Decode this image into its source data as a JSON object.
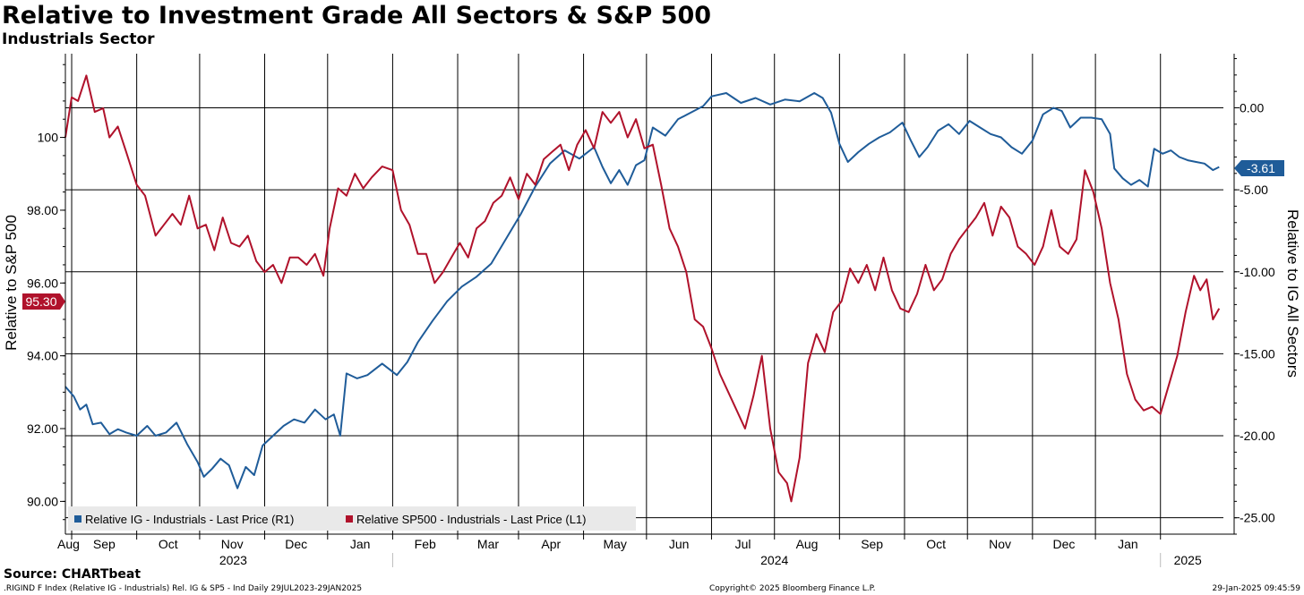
{
  "header": {
    "title": "Relative to Investment Grade All Sectors & S&P 500",
    "subtitle": "Industrials Sector"
  },
  "footer": {
    "source": "Source: CHARTbeat",
    "ticker_info": ".RIGIND F Index (Relative IG - Industrials) Rel. IG & SP5 - Ind  Daily 29JUL2023-29JAN2025",
    "copyright": "Copyright© 2025 Bloomberg Finance L.P.",
    "timestamp": "29-Jan-2025 09:45:59"
  },
  "chart_data": {
    "type": "line",
    "title": "Relative to Investment Grade All Sectors & S&P 500",
    "subtitle": "Industrials Sector",
    "x_months": [
      "Aug",
      "Sep",
      "Oct",
      "Nov",
      "Dec",
      "Jan",
      "Feb",
      "Mar",
      "Apr",
      "May",
      "Jun",
      "Jul",
      "Aug",
      "Sep",
      "Oct",
      "Nov",
      "Dec",
      "Jan"
    ],
    "x_years": [
      "2023",
      "2024",
      "2025"
    ],
    "left_axis": {
      "label": "Relative to S&P 500",
      "ticks": [
        "90.00",
        "92.00",
        "94.00",
        "96.00",
        "98.00",
        "100"
      ],
      "range": [
        89.1,
        102.3
      ]
    },
    "right_axis": {
      "label": "Relative to IG All Sectors",
      "ticks": [
        "0.00",
        "-5.00",
        "-10.00",
        "-15.00",
        "-20.00",
        "-25.00"
      ],
      "range": [
        -26.0,
        3.3
      ]
    },
    "legend_placement": "bottom-left",
    "grid": true,
    "colors": {
      "ig": "#1f5c99",
      "sp": "#b0122b"
    },
    "series": [
      {
        "name": "Relative IG - Industrials - Last Price (R1)",
        "axis": "right",
        "color": "#1f5c99",
        "last_value_label": "-3.61",
        "points": [
          [
            "2023-07-29",
            -17.0
          ],
          [
            "2023-08-02",
            -17.6
          ],
          [
            "2023-08-05",
            -18.4
          ],
          [
            "2023-08-08",
            -18.1
          ],
          [
            "2023-08-11",
            -19.3
          ],
          [
            "2023-08-15",
            -19.2
          ],
          [
            "2023-08-19",
            -19.9
          ],
          [
            "2023-08-23",
            -19.6
          ],
          [
            "2023-08-27",
            -19.8
          ],
          [
            "2023-09-01",
            -20.0
          ],
          [
            "2023-09-06",
            -19.4
          ],
          [
            "2023-09-10",
            -20.0
          ],
          [
            "2023-09-15",
            -19.8
          ],
          [
            "2023-09-20",
            -19.2
          ],
          [
            "2023-09-25",
            -20.5
          ],
          [
            "2023-09-30",
            -21.6
          ],
          [
            "2023-10-03",
            -22.5
          ],
          [
            "2023-10-07",
            -22.0
          ],
          [
            "2023-10-11",
            -21.4
          ],
          [
            "2023-10-15",
            -21.8
          ],
          [
            "2023-10-19",
            -23.2
          ],
          [
            "2023-10-23",
            -21.9
          ],
          [
            "2023-10-27",
            -22.4
          ],
          [
            "2023-10-31",
            -20.6
          ],
          [
            "2023-11-05",
            -20.0
          ],
          [
            "2023-11-10",
            -19.4
          ],
          [
            "2023-11-15",
            -19.0
          ],
          [
            "2023-11-20",
            -19.2
          ],
          [
            "2023-11-25",
            -18.4
          ],
          [
            "2023-11-30",
            -19.0
          ],
          [
            "2023-12-04",
            -18.7
          ],
          [
            "2023-12-07",
            -20.0
          ],
          [
            "2023-12-10",
            -16.2
          ],
          [
            "2023-12-15",
            -16.5
          ],
          [
            "2023-12-20",
            -16.3
          ],
          [
            "2023-12-27",
            -15.6
          ],
          [
            "2024-01-03",
            -16.3
          ],
          [
            "2024-01-08",
            -15.5
          ],
          [
            "2024-01-13",
            -14.3
          ],
          [
            "2024-01-20",
            -13.0
          ],
          [
            "2024-01-27",
            -11.8
          ],
          [
            "2024-02-03",
            -10.9
          ],
          [
            "2024-02-10",
            -10.3
          ],
          [
            "2024-02-17",
            -9.5
          ],
          [
            "2024-02-24",
            -8.0
          ],
          [
            "2024-03-02",
            -6.5
          ],
          [
            "2024-03-09",
            -4.8
          ],
          [
            "2024-03-16",
            -3.4
          ],
          [
            "2024-03-23",
            -2.6
          ],
          [
            "2024-03-30",
            -3.1
          ],
          [
            "2024-04-06",
            -2.4
          ],
          [
            "2024-04-10",
            -3.6
          ],
          [
            "2024-04-14",
            -4.6
          ],
          [
            "2024-04-18",
            -3.8
          ],
          [
            "2024-04-22",
            -4.7
          ],
          [
            "2024-04-26",
            -3.5
          ],
          [
            "2024-04-30",
            -3.2
          ],
          [
            "2024-05-04",
            -1.2
          ],
          [
            "2024-05-10",
            -1.7
          ],
          [
            "2024-05-16",
            -0.7
          ],
          [
            "2024-05-22",
            -0.3
          ],
          [
            "2024-05-28",
            0.1
          ],
          [
            "2024-06-01",
            0.7
          ],
          [
            "2024-06-08",
            0.9
          ],
          [
            "2024-06-15",
            0.3
          ],
          [
            "2024-06-22",
            0.6
          ],
          [
            "2024-06-29",
            0.2
          ],
          [
            "2024-07-06",
            0.5
          ],
          [
            "2024-07-13",
            0.4
          ],
          [
            "2024-07-20",
            0.9
          ],
          [
            "2024-07-24",
            0.6
          ],
          [
            "2024-07-28",
            -0.3
          ],
          [
            "2024-08-01",
            -2.2
          ],
          [
            "2024-08-05",
            -3.3
          ],
          [
            "2024-08-10",
            -2.7
          ],
          [
            "2024-08-15",
            -2.2
          ],
          [
            "2024-08-20",
            -1.8
          ],
          [
            "2024-08-25",
            -1.5
          ],
          [
            "2024-08-31",
            -0.9
          ],
          [
            "2024-09-04",
            -2.0
          ],
          [
            "2024-09-08",
            -3.0
          ],
          [
            "2024-09-12",
            -2.4
          ],
          [
            "2024-09-17",
            -1.4
          ],
          [
            "2024-09-22",
            -1.0
          ],
          [
            "2024-09-27",
            -1.6
          ],
          [
            "2024-10-02",
            -0.8
          ],
          [
            "2024-10-07",
            -1.2
          ],
          [
            "2024-10-12",
            -1.6
          ],
          [
            "2024-10-17",
            -1.8
          ],
          [
            "2024-10-22",
            -2.4
          ],
          [
            "2024-10-27",
            -2.8
          ],
          [
            "2024-11-01",
            -2.0
          ],
          [
            "2024-11-06",
            -0.4
          ],
          [
            "2024-11-11",
            0.0
          ],
          [
            "2024-11-15",
            -0.2
          ],
          [
            "2024-11-19",
            -1.2
          ],
          [
            "2024-11-24",
            -0.6
          ],
          [
            "2024-11-29",
            -0.6
          ],
          [
            "2024-12-04",
            -0.7
          ],
          [
            "2024-12-08",
            -1.6
          ],
          [
            "2024-12-10",
            -3.7
          ],
          [
            "2024-12-14",
            -4.3
          ],
          [
            "2024-12-18",
            -4.7
          ],
          [
            "2024-12-22",
            -4.4
          ],
          [
            "2024-12-26",
            -4.8
          ],
          [
            "2024-12-29",
            -2.5
          ],
          [
            "2025-01-02",
            -2.8
          ],
          [
            "2025-01-06",
            -2.6
          ],
          [
            "2025-01-10",
            -3.0
          ],
          [
            "2025-01-14",
            -3.2
          ],
          [
            "2025-01-18",
            -3.3
          ],
          [
            "2025-01-22",
            -3.4
          ],
          [
            "2025-01-26",
            -3.8
          ],
          [
            "2025-01-29",
            -3.61
          ]
        ]
      },
      {
        "name": "Relative SP500 - Industrials - Last Price (L1)",
        "axis": "left",
        "color": "#b0122b",
        "last_value_label": "95.30",
        "points": [
          [
            "2023-07-29",
            100.0
          ],
          [
            "2023-08-01",
            101.1
          ],
          [
            "2023-08-04",
            101.0
          ],
          [
            "2023-08-08",
            101.7
          ],
          [
            "2023-08-12",
            100.7
          ],
          [
            "2023-08-16",
            100.8
          ],
          [
            "2023-08-19",
            100.0
          ],
          [
            "2023-08-23",
            100.3
          ],
          [
            "2023-08-27",
            99.6
          ],
          [
            "2023-09-01",
            98.7
          ],
          [
            "2023-09-05",
            98.4
          ],
          [
            "2023-09-10",
            97.3
          ],
          [
            "2023-09-14",
            97.6
          ],
          [
            "2023-09-18",
            97.9
          ],
          [
            "2023-09-22",
            97.6
          ],
          [
            "2023-09-26",
            98.4
          ],
          [
            "2023-09-30",
            97.5
          ],
          [
            "2023-10-04",
            97.6
          ],
          [
            "2023-10-08",
            96.9
          ],
          [
            "2023-10-12",
            97.8
          ],
          [
            "2023-10-16",
            97.1
          ],
          [
            "2023-10-20",
            97.0
          ],
          [
            "2023-10-24",
            97.3
          ],
          [
            "2023-10-28",
            96.6
          ],
          [
            "2023-11-01",
            96.3
          ],
          [
            "2023-11-05",
            96.5
          ],
          [
            "2023-11-09",
            96.0
          ],
          [
            "2023-11-13",
            96.7
          ],
          [
            "2023-11-17",
            96.7
          ],
          [
            "2023-11-21",
            96.5
          ],
          [
            "2023-11-25",
            96.8
          ],
          [
            "2023-11-29",
            96.2
          ],
          [
            "2023-12-02",
            97.5
          ],
          [
            "2023-12-06",
            98.6
          ],
          [
            "2023-12-10",
            98.4
          ],
          [
            "2023-12-14",
            99.0
          ],
          [
            "2023-12-18",
            98.6
          ],
          [
            "2023-12-22",
            98.9
          ],
          [
            "2023-12-27",
            99.2
          ],
          [
            "2024-01-01",
            99.1
          ],
          [
            "2024-01-05",
            98.0
          ],
          [
            "2024-01-09",
            97.6
          ],
          [
            "2024-01-13",
            96.8
          ],
          [
            "2024-01-17",
            96.8
          ],
          [
            "2024-01-21",
            96.0
          ],
          [
            "2024-01-25",
            96.3
          ],
          [
            "2024-01-29",
            96.7
          ],
          [
            "2024-02-02",
            97.1
          ],
          [
            "2024-02-06",
            96.7
          ],
          [
            "2024-02-10",
            97.5
          ],
          [
            "2024-02-14",
            97.7
          ],
          [
            "2024-02-18",
            98.2
          ],
          [
            "2024-02-22",
            98.4
          ],
          [
            "2024-02-26",
            98.9
          ],
          [
            "2024-03-01",
            98.3
          ],
          [
            "2024-03-05",
            99.0
          ],
          [
            "2024-03-09",
            98.7
          ],
          [
            "2024-03-13",
            99.4
          ],
          [
            "2024-03-17",
            99.6
          ],
          [
            "2024-03-21",
            99.8
          ],
          [
            "2024-03-25",
            99.1
          ],
          [
            "2024-03-29",
            99.8
          ],
          [
            "2024-04-02",
            100.2
          ],
          [
            "2024-04-06",
            99.7
          ],
          [
            "2024-04-10",
            100.7
          ],
          [
            "2024-04-14",
            100.4
          ],
          [
            "2024-04-18",
            100.7
          ],
          [
            "2024-04-22",
            100.0
          ],
          [
            "2024-04-26",
            100.5
          ],
          [
            "2024-04-30",
            99.7
          ],
          [
            "2024-05-04",
            99.8
          ],
          [
            "2024-05-08",
            98.7
          ],
          [
            "2024-05-12",
            97.5
          ],
          [
            "2024-05-16",
            97.0
          ],
          [
            "2024-05-20",
            96.3
          ],
          [
            "2024-05-24",
            95.0
          ],
          [
            "2024-05-28",
            94.8
          ],
          [
            "2024-06-01",
            94.2
          ],
          [
            "2024-06-05",
            93.5
          ],
          [
            "2024-06-09",
            93.0
          ],
          [
            "2024-06-13",
            92.5
          ],
          [
            "2024-06-17",
            92.0
          ],
          [
            "2024-06-21",
            92.9
          ],
          [
            "2024-06-25",
            94.0
          ],
          [
            "2024-06-29",
            92.0
          ],
          [
            "2024-07-03",
            90.8
          ],
          [
            "2024-07-07",
            90.5
          ],
          [
            "2024-07-09",
            90.0
          ],
          [
            "2024-07-13",
            91.2
          ],
          [
            "2024-07-17",
            93.8
          ],
          [
            "2024-07-21",
            94.6
          ],
          [
            "2024-07-25",
            94.1
          ],
          [
            "2024-07-29",
            95.2
          ],
          [
            "2024-08-02",
            95.5
          ],
          [
            "2024-08-06",
            96.4
          ],
          [
            "2024-08-10",
            96.0
          ],
          [
            "2024-08-14",
            96.5
          ],
          [
            "2024-08-18",
            95.8
          ],
          [
            "2024-08-22",
            96.7
          ],
          [
            "2024-08-26",
            95.8
          ],
          [
            "2024-08-30",
            95.3
          ],
          [
            "2024-09-03",
            95.2
          ],
          [
            "2024-09-07",
            95.7
          ],
          [
            "2024-09-11",
            96.5
          ],
          [
            "2024-09-15",
            95.8
          ],
          [
            "2024-09-19",
            96.1
          ],
          [
            "2024-09-23",
            96.8
          ],
          [
            "2024-09-27",
            97.2
          ],
          [
            "2024-10-01",
            97.5
          ],
          [
            "2024-10-05",
            97.8
          ],
          [
            "2024-10-09",
            98.2
          ],
          [
            "2024-10-13",
            97.3
          ],
          [
            "2024-10-17",
            98.1
          ],
          [
            "2024-10-21",
            97.8
          ],
          [
            "2024-10-25",
            97.0
          ],
          [
            "2024-10-29",
            96.8
          ],
          [
            "2024-11-02",
            96.5
          ],
          [
            "2024-11-06",
            97.0
          ],
          [
            "2024-11-10",
            98.0
          ],
          [
            "2024-11-14",
            97.0
          ],
          [
            "2024-11-18",
            96.8
          ],
          [
            "2024-11-22",
            97.2
          ],
          [
            "2024-11-26",
            99.1
          ],
          [
            "2024-11-30",
            98.5
          ],
          [
            "2024-12-04",
            97.5
          ],
          [
            "2024-12-08",
            96.0
          ],
          [
            "2024-12-12",
            95.0
          ],
          [
            "2024-12-16",
            93.5
          ],
          [
            "2024-12-20",
            92.8
          ],
          [
            "2024-12-24",
            92.5
          ],
          [
            "2024-12-28",
            92.6
          ],
          [
            "2025-01-01",
            92.4
          ],
          [
            "2025-01-05",
            93.2
          ],
          [
            "2025-01-09",
            94.0
          ],
          [
            "2025-01-13",
            95.2
          ],
          [
            "2025-01-17",
            96.2
          ],
          [
            "2025-01-20",
            95.8
          ],
          [
            "2025-01-23",
            96.1
          ],
          [
            "2025-01-26",
            95.0
          ],
          [
            "2025-01-29",
            95.3
          ]
        ]
      }
    ]
  }
}
